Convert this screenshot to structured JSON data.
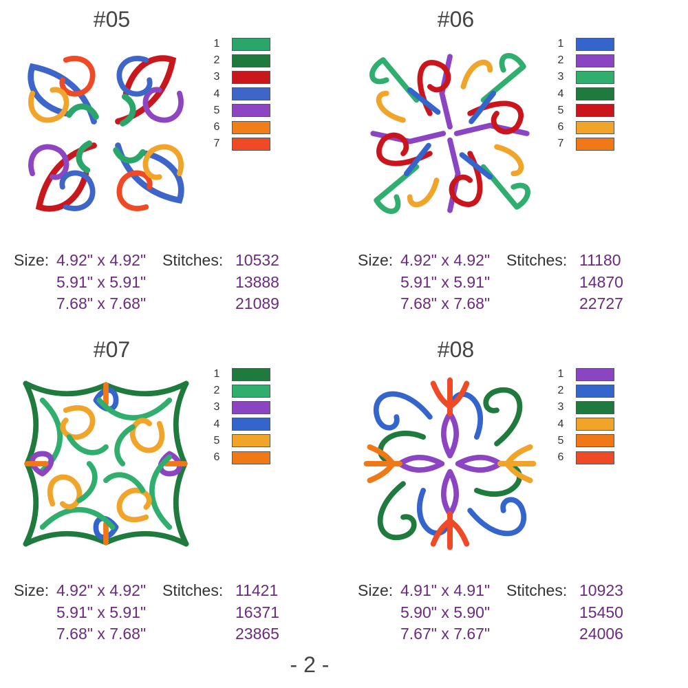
{
  "designs": [
    {
      "id": "#05",
      "palette": [
        "#2aa66a",
        "#1f7a3e",
        "#c8171d",
        "#3e66c8",
        "#8d45c1",
        "#f07e1a",
        "#ef4a25"
      ],
      "size_label": "Size:",
      "stitches_label": "Stitches:",
      "specs": [
        {
          "size": "4.92\" x 4.92\"",
          "stitches": "10532"
        },
        {
          "size": "5.91\" x 5.91\"",
          "stitches": "13888"
        },
        {
          "size": "7.68\" x 7.68\"",
          "stitches": "21089"
        }
      ]
    },
    {
      "id": "#06",
      "palette": [
        "#3465cc",
        "#8b44c2",
        "#2fae6e",
        "#1f7a3e",
        "#c9151b",
        "#f1a42a",
        "#f07817"
      ],
      "size_label": "Size:",
      "stitches_label": "Stitches:",
      "specs": [
        {
          "size": "4.92\" x 4.92\"",
          "stitches": "11180"
        },
        {
          "size": "5.91\" x 5.91\"",
          "stitches": "14870"
        },
        {
          "size": "7.68\" x 7.68\"",
          "stitches": "22727"
        }
      ]
    },
    {
      "id": "#07",
      "palette": [
        "#1f7a3e",
        "#2fae6e",
        "#8b44c2",
        "#3465cc",
        "#f1a42a",
        "#f07817"
      ],
      "size_label": "Size:",
      "stitches_label": "Stitches:",
      "specs": [
        {
          "size": "4.92\" x 4.92\"",
          "stitches": "11421"
        },
        {
          "size": "5.91\" x 5.91\"",
          "stitches": "16371"
        },
        {
          "size": "7.68\" x 7.68\"",
          "stitches": "23865"
        }
      ]
    },
    {
      "id": "#08",
      "palette": [
        "#8b44c2",
        "#3465cc",
        "#1f7a3e",
        "#f1a42a",
        "#f07817",
        "#ef4a25"
      ],
      "size_label": "Size:",
      "stitches_label": "Stitches:",
      "specs": [
        {
          "size": "4.91\" x 4.91\"",
          "stitches": "10923"
        },
        {
          "size": "5.90\" x 5.90\"",
          "stitches": "15450"
        },
        {
          "size": "7.67\" x 7.67\"",
          "stitches": "24006"
        }
      ]
    }
  ],
  "page_number": "- 2 -"
}
